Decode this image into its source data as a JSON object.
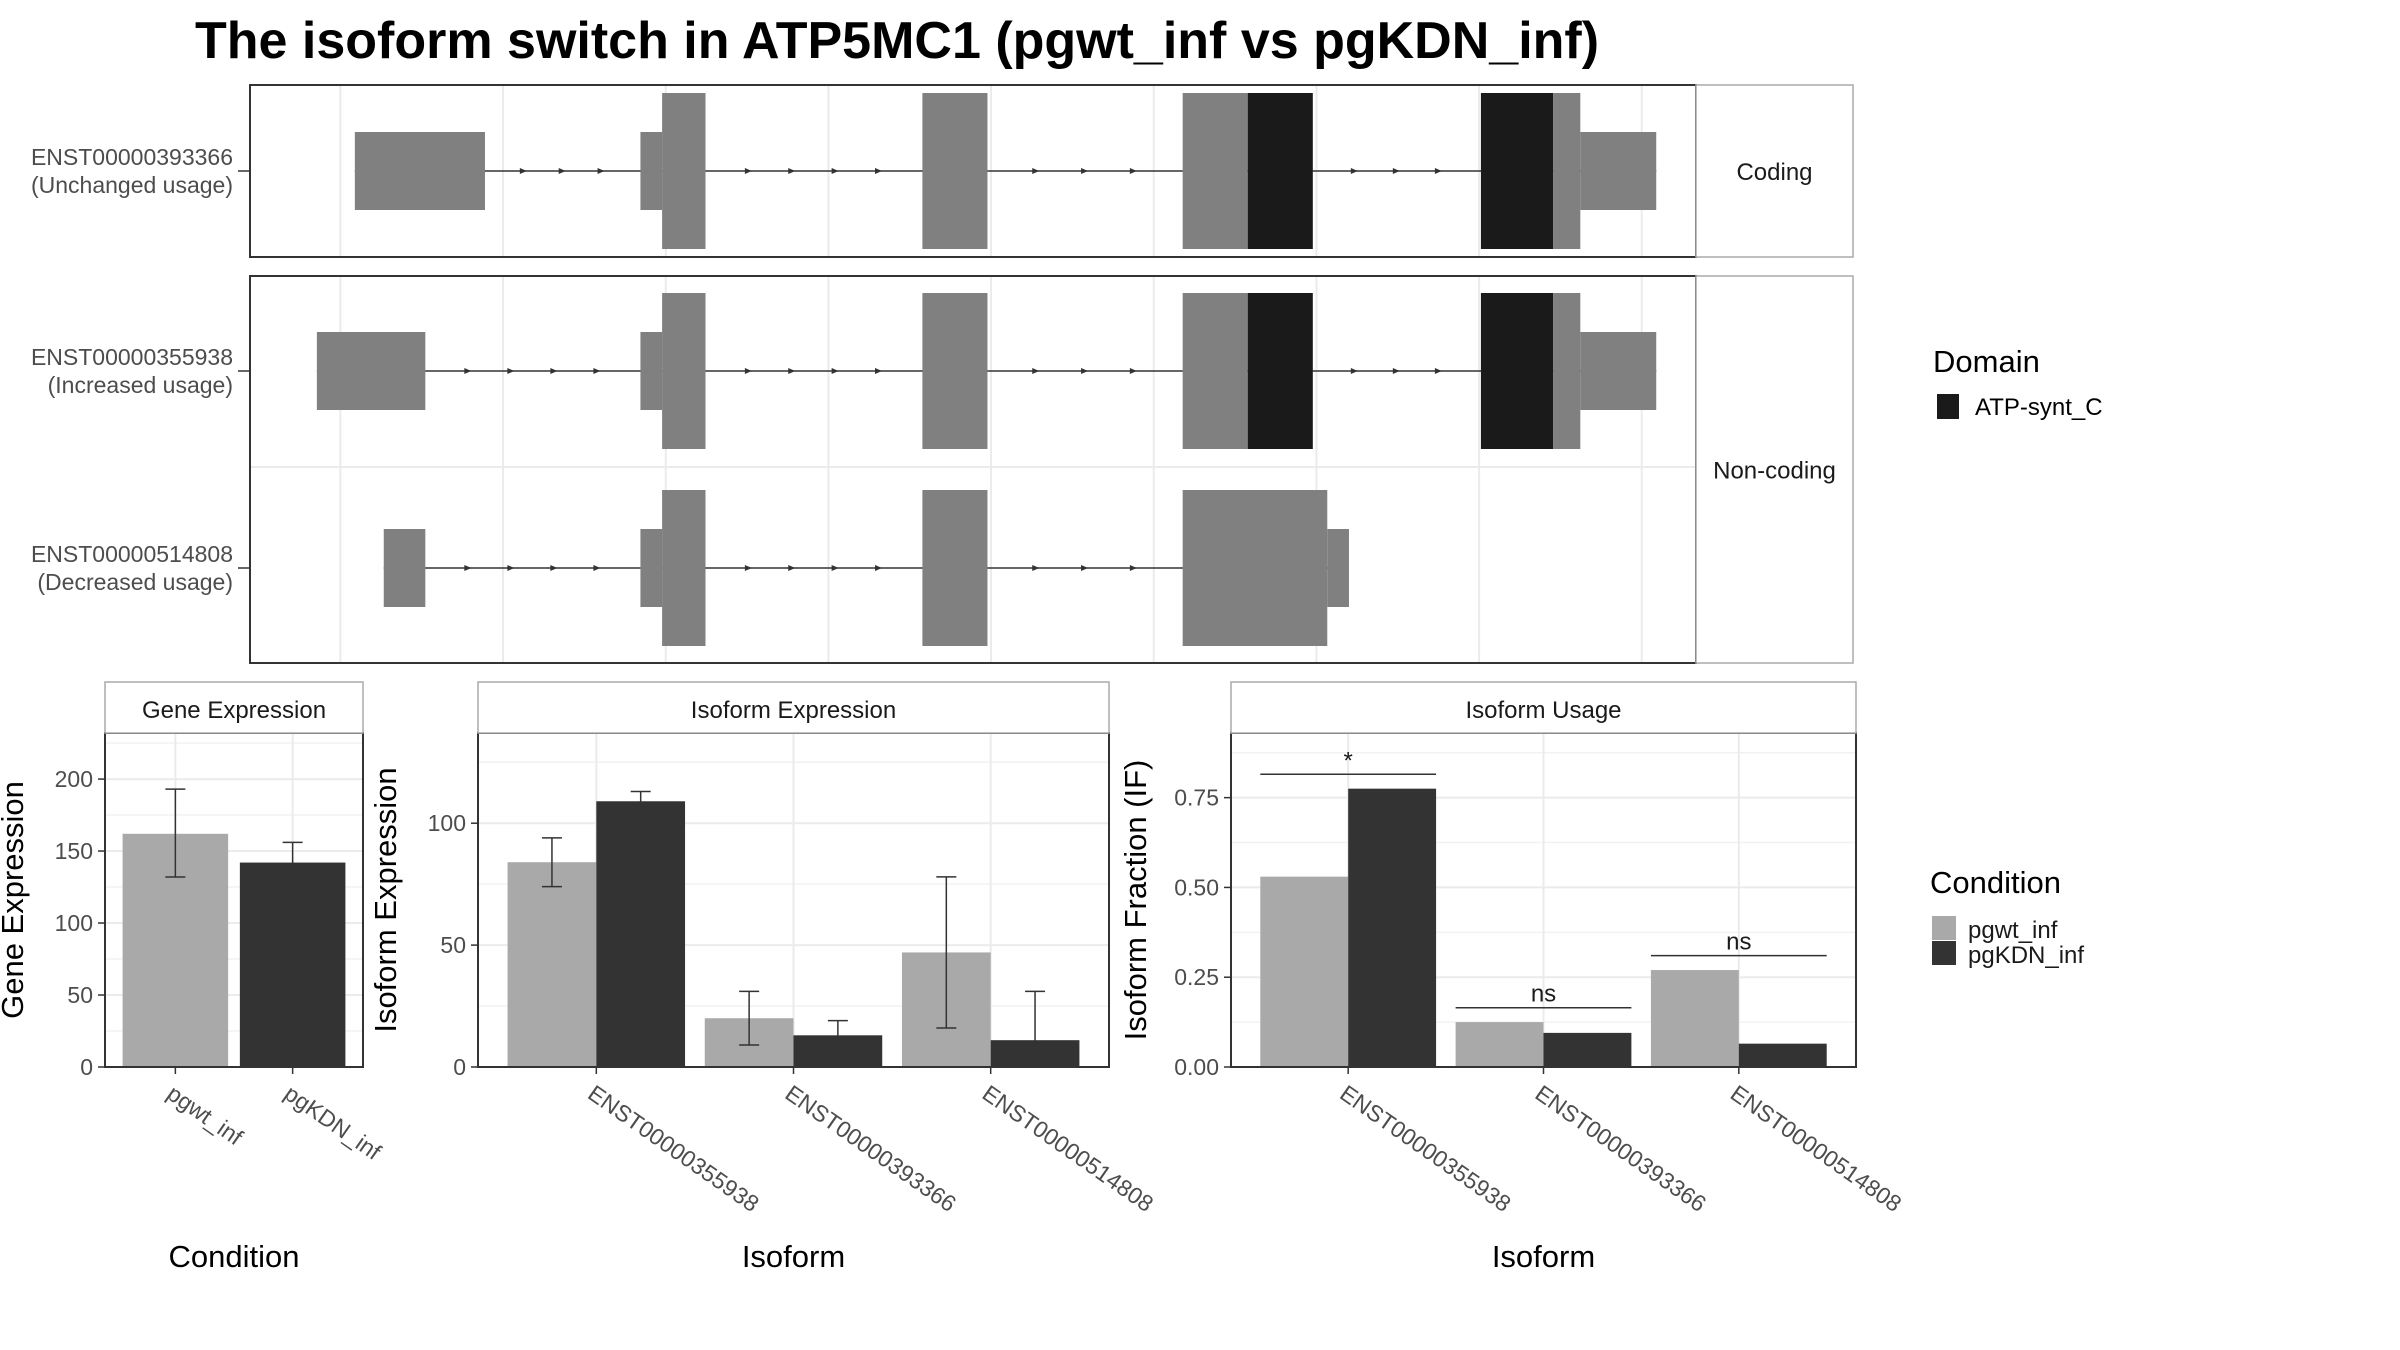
{
  "title": "The isoform switch in ATP5MC1 (pgwt_inf vs pgKDN_inf)",
  "colors": {
    "exon": "#808080",
    "domain": "#1a1a1a",
    "intron": "#333333",
    "cond1": "#a9a9a9",
    "cond2": "#333333",
    "grid": "#ebebeb",
    "frame": "#333333"
  },
  "structure": {
    "groups": [
      {
        "label": "Coding",
        "transcripts": [
          0
        ]
      },
      {
        "label": "Non-coding",
        "transcripts": [
          1,
          2
        ]
      }
    ],
    "transcripts": [
      {
        "id": "ENST00000393366",
        "usage": "(Unchanged usage)",
        "exons": [
          {
            "start": 5.8,
            "end": 13.0,
            "type": "utr"
          },
          {
            "start": 21.6,
            "end": 22.8,
            "type": "utr"
          },
          {
            "start": 22.8,
            "end": 25.2,
            "type": "cds"
          },
          {
            "start": 37.2,
            "end": 40.8,
            "type": "cds"
          },
          {
            "start": 51.6,
            "end": 55.2,
            "type": "cds"
          },
          {
            "start": 55.2,
            "end": 58.8,
            "type": "domain"
          },
          {
            "start": 68.1,
            "end": 72.1,
            "type": "domain"
          },
          {
            "start": 72.1,
            "end": 73.6,
            "type": "cds"
          },
          {
            "start": 73.6,
            "end": 77.8,
            "type": "utr"
          }
        ]
      },
      {
        "id": "ENST00000355938",
        "usage": "(Increased usage)",
        "exons": [
          {
            "start": 3.7,
            "end": 9.7,
            "type": "utr"
          },
          {
            "start": 21.6,
            "end": 22.8,
            "type": "utr"
          },
          {
            "start": 22.8,
            "end": 25.2,
            "type": "cds"
          },
          {
            "start": 37.2,
            "end": 40.8,
            "type": "cds"
          },
          {
            "start": 51.6,
            "end": 55.2,
            "type": "cds"
          },
          {
            "start": 55.2,
            "end": 58.8,
            "type": "domain"
          },
          {
            "start": 68.1,
            "end": 72.1,
            "type": "domain"
          },
          {
            "start": 72.1,
            "end": 73.6,
            "type": "cds"
          },
          {
            "start": 73.6,
            "end": 77.8,
            "type": "utr"
          }
        ]
      },
      {
        "id": "ENST00000514808",
        "usage": "(Decreased usage)",
        "exons": [
          {
            "start": 7.4,
            "end": 9.7,
            "type": "utr"
          },
          {
            "start": 21.6,
            "end": 22.8,
            "type": "utr"
          },
          {
            "start": 22.8,
            "end": 25.2,
            "type": "cds"
          },
          {
            "start": 37.2,
            "end": 40.8,
            "type": "cds"
          },
          {
            "start": 51.6,
            "end": 59.6,
            "type": "cds"
          },
          {
            "start": 59.6,
            "end": 60.8,
            "type": "utr"
          }
        ]
      }
    ]
  },
  "legends": {
    "domain": {
      "title": "Domain",
      "items": [
        "ATP-synt_C"
      ]
    },
    "condition": {
      "title": "Condition",
      "items": [
        "pgwt_inf",
        "pgKDN_inf"
      ]
    }
  },
  "chart_data": [
    {
      "type": "bar",
      "title": "Gene Expression",
      "xlabel": "Condition",
      "ylabel": "Gene Expression",
      "ylim": [
        0,
        232
      ],
      "yticks": [
        0,
        50,
        100,
        150,
        200
      ],
      "categories": [
        "pgwt_inf",
        "pgKDN_inf"
      ],
      "values": [
        162,
        142
      ],
      "errors": [
        [
          132,
          193
        ],
        [
          127,
          156
        ]
      ]
    },
    {
      "type": "bar",
      "title": "Isoform Expression",
      "xlabel": "Isoform",
      "ylabel": "Isoform Expression",
      "ylim": [
        0,
        137
      ],
      "yticks": [
        0,
        50,
        100
      ],
      "categories": [
        "ENST00000355938",
        "ENST00000393366",
        "ENST00000514808"
      ],
      "series": [
        {
          "name": "pgwt_inf",
          "values": [
            84,
            20,
            47
          ],
          "errors": [
            [
              74,
              94
            ],
            [
              9,
              31
            ],
            [
              16,
              78
            ]
          ]
        },
        {
          "name": "pgKDN_inf",
          "values": [
            109,
            13,
            11
          ],
          "errors": [
            [
              104,
              113
            ],
            [
              8,
              19
            ],
            [
              0,
              31
            ]
          ]
        }
      ]
    },
    {
      "type": "bar",
      "title": "Isoform Usage",
      "xlabel": "Isoform",
      "ylabel": "Isoform Fraction (IF)",
      "ylim": [
        0,
        0.93
      ],
      "yticks": [
        "0.00",
        "0.25",
        "0.50",
        "0.75"
      ],
      "categories": [
        "ENST00000355938",
        "ENST00000393366",
        "ENST00000514808"
      ],
      "series": [
        {
          "name": "pgwt_inf",
          "values": [
            0.53,
            0.125,
            0.27
          ]
        },
        {
          "name": "pgKDN_inf",
          "values": [
            0.775,
            0.095,
            0.065
          ]
        }
      ],
      "significance": [
        {
          "label": "*",
          "y": 0.815
        },
        {
          "label": "ns",
          "y": 0.165
        },
        {
          "label": "ns",
          "y": 0.31
        }
      ]
    }
  ]
}
